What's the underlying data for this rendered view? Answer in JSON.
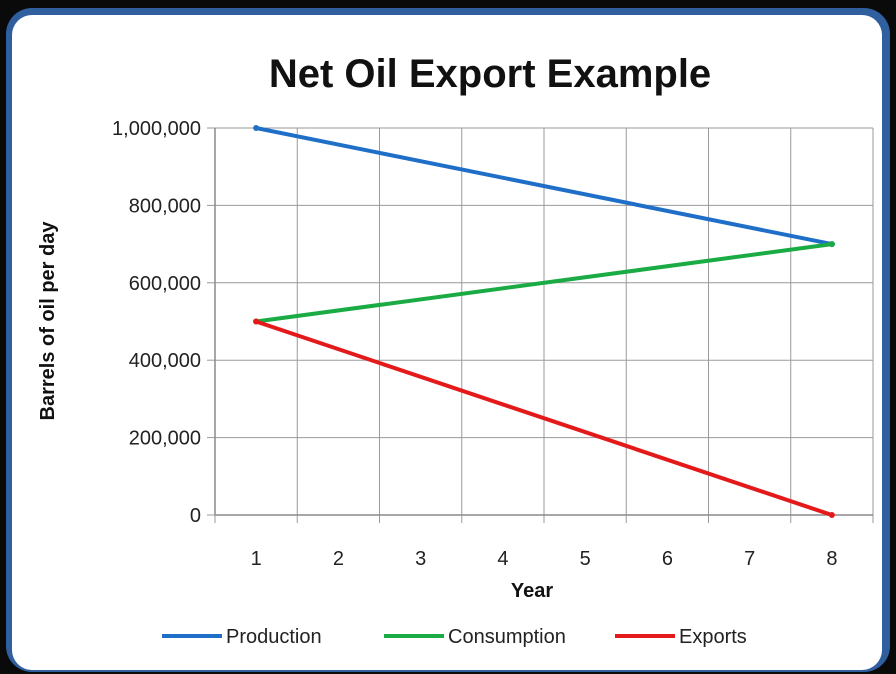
{
  "chart_data": {
    "type": "line",
    "title": "Net Oil Export Example",
    "xlabel": "Year",
    "ylabel": "Barrels of oil per day",
    "x": [
      1,
      8
    ],
    "x_ticks": [
      "1",
      "2",
      "3",
      "4",
      "5",
      "6",
      "7",
      "8"
    ],
    "y_ticks": [
      "0",
      "200,000",
      "400,000",
      "600,000",
      "800,000",
      "1,000,000"
    ],
    "ylim": [
      0,
      1000000
    ],
    "xlim": [
      0.5,
      8.5
    ],
    "grid": true,
    "legend_position": "bottom",
    "series": [
      {
        "name": "Production",
        "color": "#1f6fc8",
        "values": [
          1000000,
          700000
        ]
      },
      {
        "name": "Consumption",
        "color": "#1aab44",
        "values": [
          500000,
          700000
        ]
      },
      {
        "name": "Exports",
        "color": "#e41a1a",
        "values": [
          500000,
          0
        ]
      }
    ]
  }
}
